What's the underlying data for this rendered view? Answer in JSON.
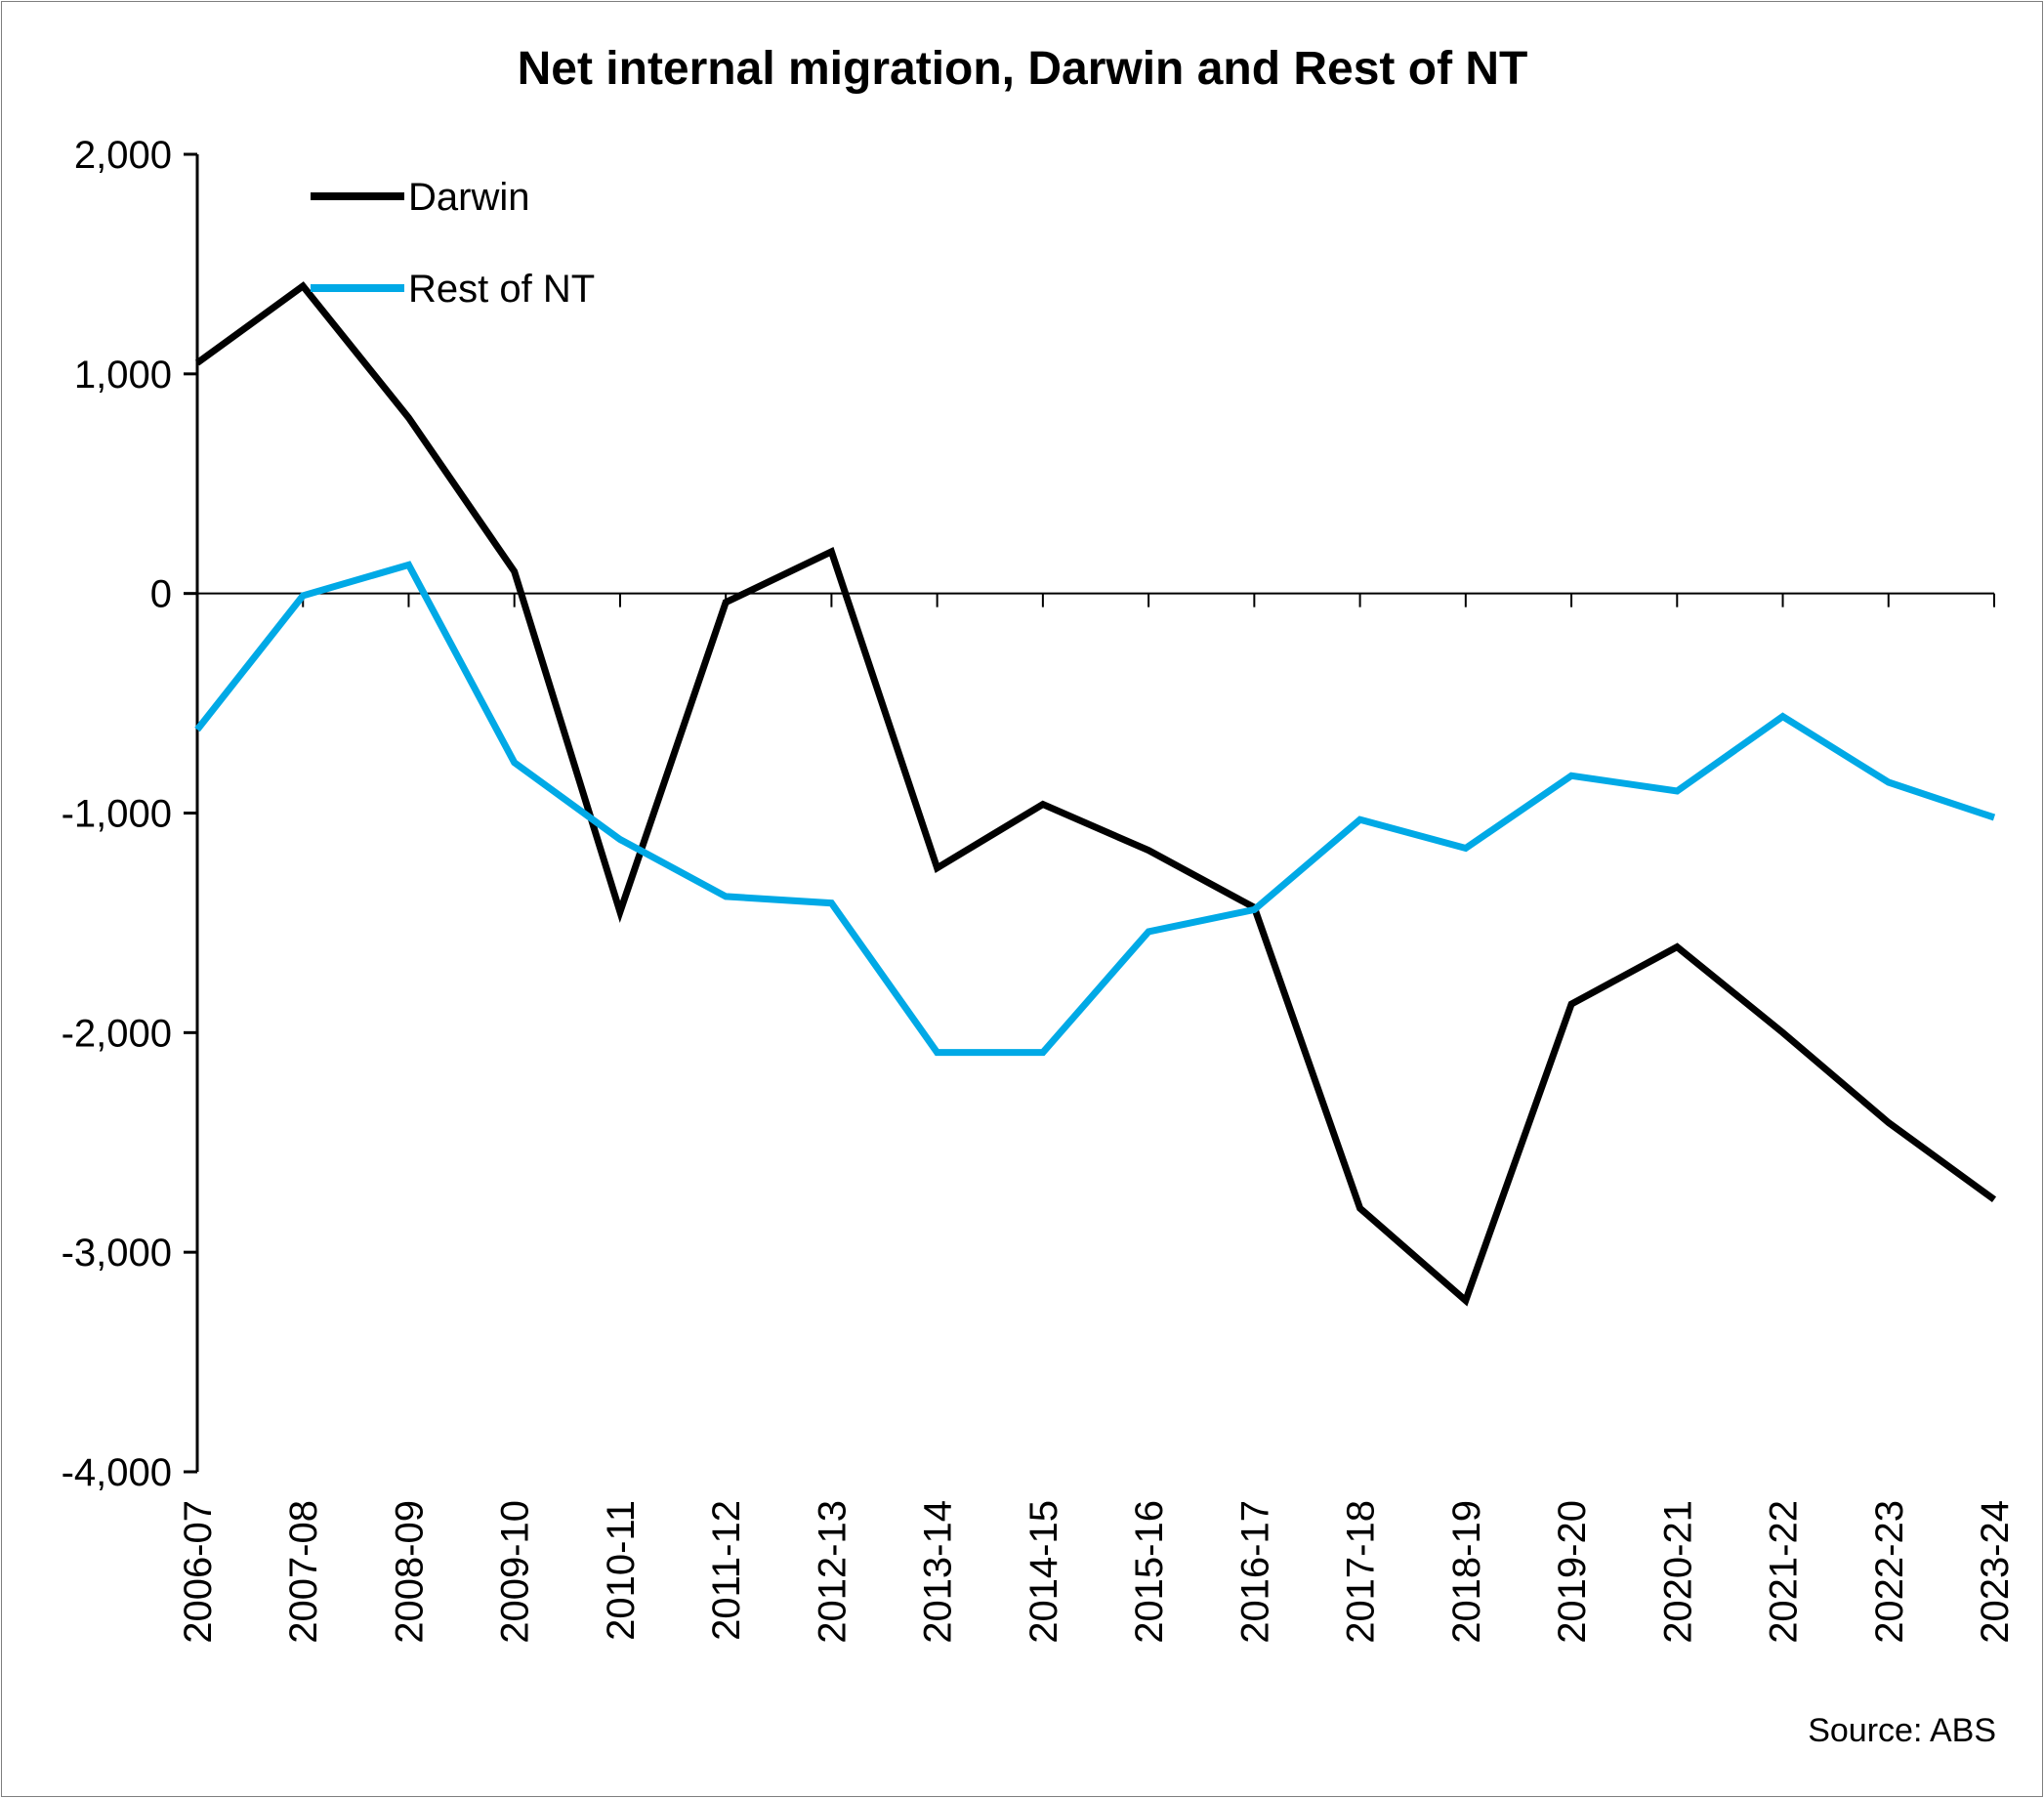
{
  "chart_data": {
    "type": "line",
    "title": "Net internal migration, Darwin and Rest of NT",
    "x": [
      "2006-07",
      "2007-08",
      "2008-09",
      "2009-10",
      "2010-11",
      "2011-12",
      "2012-13",
      "2013-14",
      "2014-15",
      "2015-16",
      "2016-17",
      "2017-18",
      "2018-19",
      "2019-20",
      "2020-21",
      "2021-22",
      "2022-23",
      "2023-24"
    ],
    "ylim": [
      -4000,
      2000
    ],
    "yticks": [
      2000,
      1000,
      0,
      -1000,
      -2000,
      -3000,
      -4000
    ],
    "ytick_labels": [
      "2,000",
      "1,000",
      "0",
      "-1,000",
      "-2,000",
      "-3,000",
      "-4,000"
    ],
    "grid": false,
    "legend_position": "top-left",
    "series": [
      {
        "name": "Darwin",
        "color": "#000000",
        "values": [
          1050,
          1400,
          800,
          100,
          -1450,
          -40,
          190,
          -1250,
          -960,
          -1170,
          -1430,
          -2800,
          -3220,
          -1870,
          -1610,
          -2000,
          -2410,
          -2760
        ]
      },
      {
        "name": "Rest of NT",
        "color": "#00a9e6",
        "values": [
          -620,
          -10,
          130,
          -770,
          -1120,
          -1380,
          -1410,
          -2090,
          -2090,
          -1540,
          -1440,
          -1030,
          -1160,
          -830,
          -900,
          -560,
          -860,
          -1020
        ]
      }
    ],
    "source": "Source: ABS"
  }
}
